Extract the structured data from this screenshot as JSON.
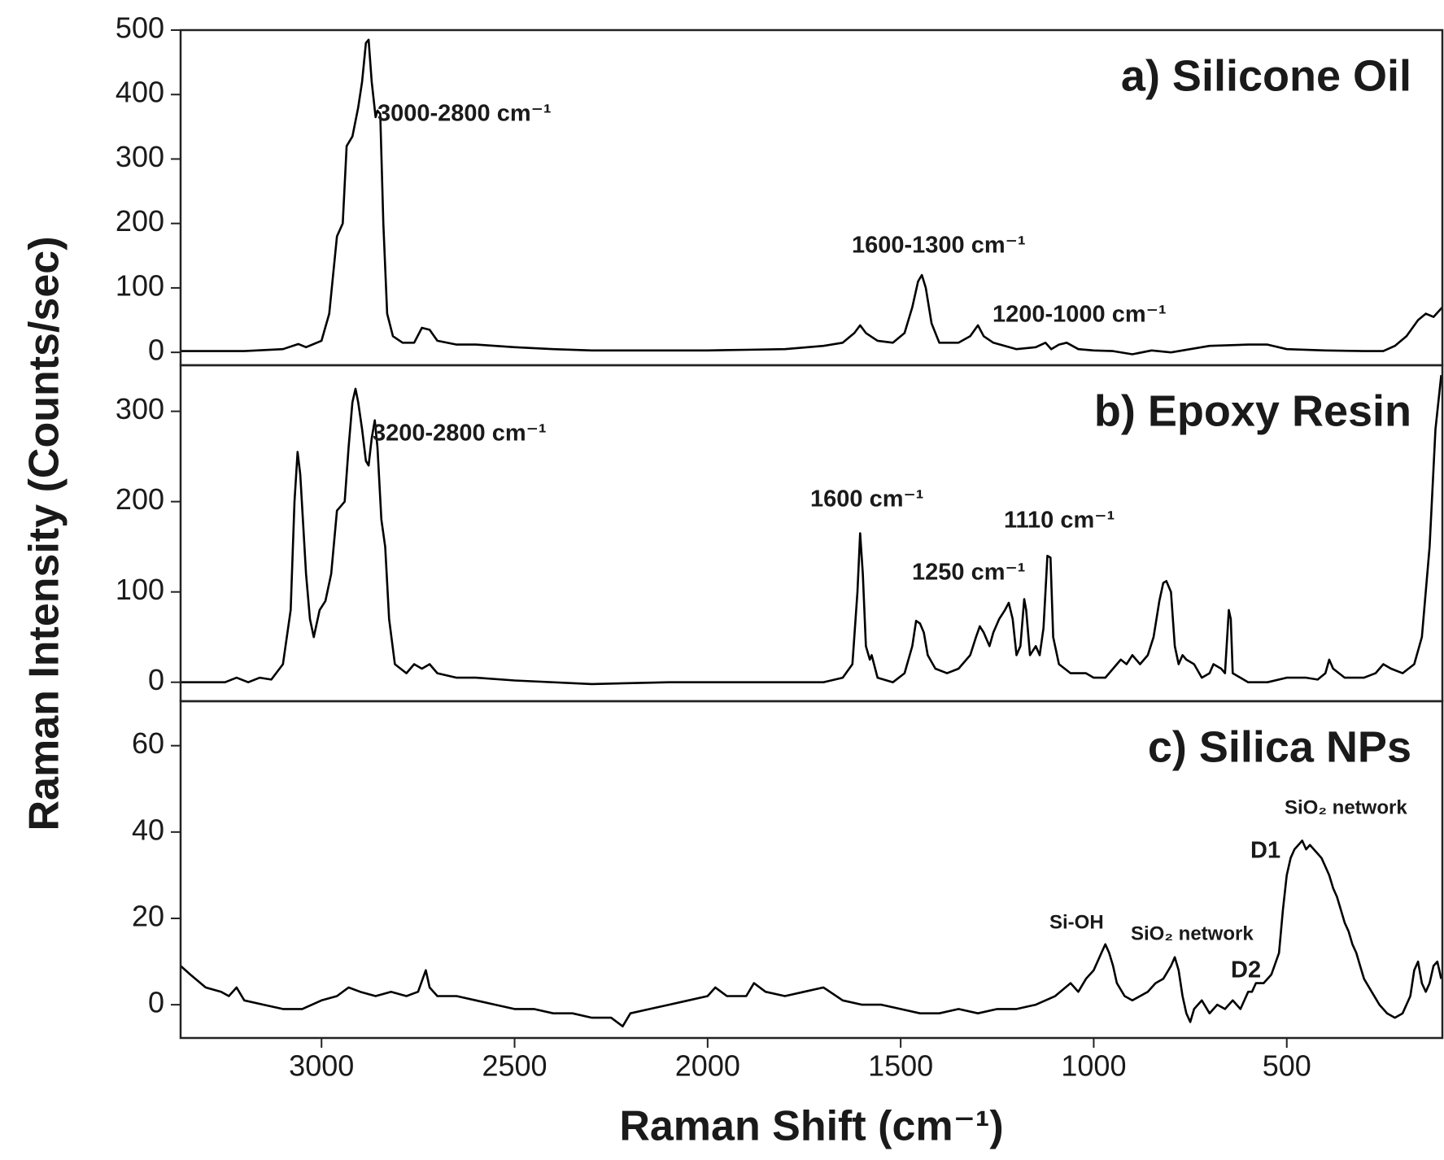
{
  "chart_data": [
    {
      "type": "line",
      "title": "a) Silicone Oil",
      "annotations": [
        "3000-2800 cm⁻¹",
        "1600-1300 cm⁻¹",
        "1200-1000 cm⁻¹"
      ],
      "xlim": [
        3365,
        97
      ],
      "ylim": [
        -20,
        500
      ],
      "yticks": [
        0,
        100,
        200,
        300,
        400,
        500
      ],
      "series": [
        {
          "color": "#000000",
          "x": [
            3365,
            3200,
            3100,
            3060,
            3040,
            3000,
            2980,
            2960,
            2945,
            2935,
            2920,
            2905,
            2895,
            2885,
            2878,
            2870,
            2860,
            2855,
            2848,
            2840,
            2830,
            2815,
            2790,
            2760,
            2740,
            2720,
            2700,
            2650,
            2600,
            2500,
            2400,
            2300,
            2200,
            2100,
            2000,
            1900,
            1800,
            1700,
            1650,
            1620,
            1605,
            1590,
            1560,
            1520,
            1490,
            1470,
            1455,
            1445,
            1435,
            1420,
            1400,
            1350,
            1320,
            1300,
            1285,
            1260,
            1200,
            1150,
            1125,
            1110,
            1090,
            1070,
            1040,
            1000,
            950,
            900,
            850,
            800,
            700,
            600,
            550,
            500,
            400,
            300,
            250,
            220,
            190,
            160,
            140,
            120,
            97
          ],
          "values": [
            2,
            2,
            5,
            13,
            8,
            18,
            60,
            180,
            200,
            320,
            335,
            380,
            420,
            480,
            485,
            420,
            365,
            375,
            370,
            200,
            60,
            25,
            15,
            15,
            38,
            35,
            18,
            12,
            12,
            8,
            5,
            3,
            3,
            3,
            3,
            4,
            5,
            10,
            15,
            30,
            42,
            30,
            18,
            15,
            30,
            70,
            110,
            120,
            100,
            45,
            15,
            15,
            25,
            42,
            25,
            15,
            5,
            8,
            15,
            5,
            12,
            15,
            5,
            3,
            2,
            -3,
            3,
            0,
            10,
            12,
            12,
            5,
            3,
            2,
            2,
            10,
            25,
            50,
            60,
            55,
            70
          ]
        }
      ]
    },
    {
      "type": "line",
      "title": "b) Epoxy Resin",
      "y_label": "Raman Intensity (Counts/sec)",
      "annotations": [
        "3200-2800 cm⁻¹",
        "1600 cm⁻¹",
        "1250 cm⁻¹",
        "1110 cm⁻¹"
      ],
      "xlim": [
        3365,
        97
      ],
      "ylim": [
        -21,
        351
      ],
      "yticks": [
        0,
        100,
        200,
        300
      ],
      "series": [
        {
          "color": "#000000",
          "x": [
            3365,
            3250,
            3220,
            3190,
            3160,
            3130,
            3100,
            3080,
            3070,
            3062,
            3055,
            3040,
            3030,
            3020,
            3005,
            2990,
            2975,
            2960,
            2950,
            2940,
            2930,
            2920,
            2912,
            2905,
            2895,
            2885,
            2878,
            2870,
            2862,
            2855,
            2845,
            2835,
            2825,
            2810,
            2780,
            2760,
            2740,
            2720,
            2700,
            2650,
            2600,
            2500,
            2300,
            2100,
            2000,
            1900,
            1800,
            1700,
            1650,
            1625,
            1612,
            1605,
            1598,
            1590,
            1580,
            1575,
            1560,
            1520,
            1490,
            1470,
            1460,
            1450,
            1440,
            1430,
            1410,
            1380,
            1350,
            1320,
            1305,
            1295,
            1285,
            1270,
            1260,
            1245,
            1230,
            1220,
            1210,
            1200,
            1190,
            1180,
            1175,
            1165,
            1150,
            1140,
            1130,
            1120,
            1112,
            1105,
            1090,
            1060,
            1020,
            1000,
            970,
            950,
            930,
            915,
            900,
            880,
            860,
            845,
            830,
            820,
            812,
            800,
            790,
            780,
            770,
            760,
            740,
            720,
            700,
            690,
            670,
            660,
            650,
            645,
            640,
            620,
            600,
            550,
            500,
            450,
            420,
            400,
            390,
            380,
            350,
            300,
            270,
            250,
            230,
            200,
            170,
            150,
            130,
            115,
            100
          ],
          "values": [
            0,
            0,
            5,
            0,
            5,
            3,
            20,
            80,
            200,
            255,
            230,
            120,
            70,
            50,
            80,
            90,
            120,
            190,
            195,
            200,
            260,
            310,
            325,
            310,
            280,
            245,
            240,
            270,
            290,
            260,
            180,
            150,
            70,
            20,
            10,
            20,
            15,
            20,
            10,
            5,
            5,
            2,
            -2,
            0,
            0,
            0,
            0,
            0,
            5,
            20,
            100,
            165,
            120,
            40,
            25,
            30,
            5,
            0,
            10,
            40,
            68,
            65,
            55,
            30,
            15,
            10,
            15,
            30,
            50,
            62,
            55,
            40,
            55,
            70,
            80,
            88,
            70,
            30,
            40,
            92,
            80,
            30,
            40,
            30,
            60,
            140,
            138,
            50,
            20,
            10,
            10,
            5,
            5,
            15,
            25,
            20,
            30,
            20,
            30,
            50,
            90,
            110,
            112,
            100,
            40,
            20,
            30,
            25,
            20,
            5,
            10,
            20,
            15,
            10,
            80,
            70,
            10,
            5,
            0,
            0,
            5,
            5,
            3,
            10,
            25,
            15,
            5,
            5,
            10,
            20,
            15,
            10,
            20,
            50,
            150,
            280,
            340
          ]
        }
      ]
    },
    {
      "type": "line",
      "title": "c) Silica NPs",
      "x_label": "Raman Shift (cm⁻¹)",
      "annotations": [
        "SiO₂ network",
        "D1",
        "Si-OH",
        "SiO₂ network",
        "D2"
      ],
      "xlim": [
        3365,
        97
      ],
      "ylim": [
        -7.7,
        70.3
      ],
      "yticks": [
        0,
        20,
        40,
        60
      ],
      "xticks": [
        3000,
        2500,
        2000,
        1500,
        1000,
        500
      ],
      "series": [
        {
          "color": "#000000",
          "x": [
            3365,
            3340,
            3300,
            3260,
            3240,
            3220,
            3200,
            3150,
            3100,
            3050,
            3000,
            2960,
            2930,
            2900,
            2860,
            2820,
            2780,
            2750,
            2730,
            2720,
            2700,
            2650,
            2600,
            2550,
            2500,
            2450,
            2400,
            2350,
            2300,
            2250,
            2220,
            2200,
            2150,
            2100,
            2050,
            2000,
            1980,
            1950,
            1900,
            1880,
            1850,
            1800,
            1750,
            1700,
            1650,
            1600,
            1550,
            1500,
            1450,
            1400,
            1350,
            1300,
            1250,
            1200,
            1150,
            1100,
            1060,
            1040,
            1020,
            1000,
            980,
            970,
            960,
            950,
            940,
            920,
            900,
            880,
            860,
            840,
            820,
            800,
            790,
            780,
            770,
            760,
            750,
            740,
            720,
            700,
            680,
            660,
            640,
            620,
            600,
            590,
            580,
            560,
            540,
            520,
            510,
            500,
            490,
            480,
            470,
            460,
            450,
            440,
            430,
            420,
            410,
            400,
            390,
            380,
            370,
            360,
            350,
            340,
            330,
            320,
            310,
            300,
            280,
            260,
            240,
            220,
            200,
            180,
            170,
            160,
            150,
            140,
            130,
            120,
            110,
            100
          ],
          "values": [
            9,
            7,
            4,
            3,
            2,
            4,
            1,
            0,
            -1,
            -1,
            1,
            2,
            4,
            3,
            2,
            3,
            2,
            3,
            8,
            4,
            2,
            2,
            1,
            0,
            -1,
            -1,
            -2,
            -2,
            -3,
            -3,
            -5,
            -2,
            -1,
            0,
            1,
            2,
            4,
            2,
            2,
            5,
            3,
            2,
            3,
            4,
            1,
            0,
            0,
            -1,
            -2,
            -2,
            -1,
            -2,
            -1,
            -1,
            0,
            2,
            5,
            3,
            6,
            8,
            12,
            14,
            12,
            9,
            5,
            2,
            1,
            2,
            3,
            5,
            6,
            9,
            11,
            8,
            2,
            -2,
            -4,
            -1,
            1,
            -2,
            0,
            -1,
            1,
            -1,
            3,
            3,
            5,
            5,
            7,
            12,
            22,
            30,
            34,
            36,
            37,
            38,
            36,
            37,
            36,
            35,
            34,
            32,
            30,
            27,
            25,
            22,
            19,
            17,
            14,
            12,
            9,
            6,
            3,
            0,
            -2,
            -3,
            -2,
            2,
            8,
            10,
            5,
            3,
            5,
            9,
            10,
            6
          ]
        }
      ]
    }
  ]
}
